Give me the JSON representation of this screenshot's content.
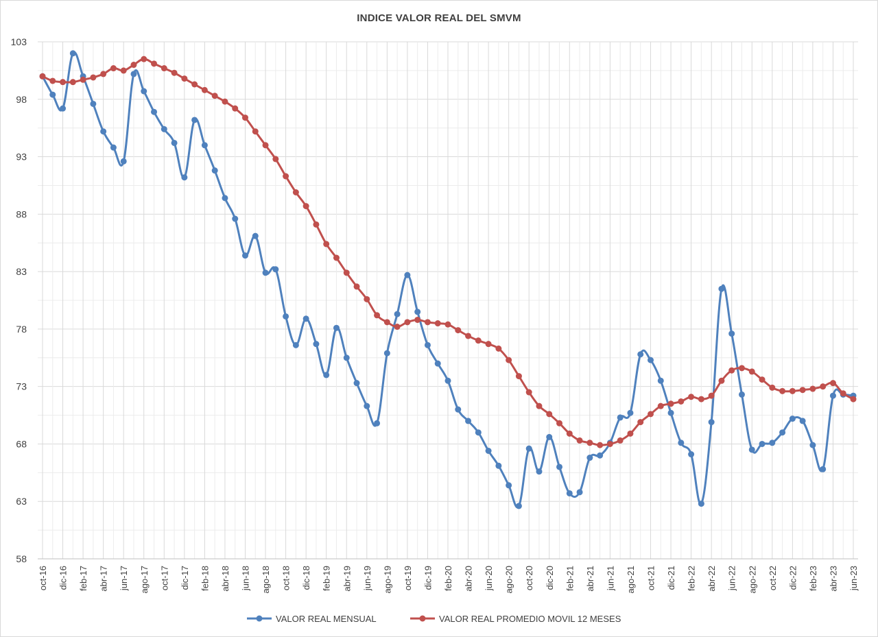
{
  "chart_data": {
    "type": "line",
    "title": "INDICE VALOR REAL DEL SMVM",
    "xlabel": "",
    "ylabel": "",
    "ylim": [
      58,
      103
    ],
    "yticks": [
      58,
      63,
      68,
      73,
      78,
      83,
      88,
      93,
      98,
      103
    ],
    "grid": true,
    "legend_position": "bottom",
    "months": [
      "oct-16",
      "nov-16",
      "dic-16",
      "ene-17",
      "feb-17",
      "mar-17",
      "abr-17",
      "may-17",
      "jun-17",
      "jul-17",
      "ago-17",
      "sep-17",
      "oct-17",
      "nov-17",
      "dic-17",
      "ene-18",
      "feb-18",
      "mar-18",
      "abr-18",
      "may-18",
      "jun-18",
      "jul-18",
      "ago-18",
      "sep-18",
      "oct-18",
      "nov-18",
      "dic-18",
      "ene-19",
      "feb-19",
      "mar-19",
      "abr-19",
      "may-19",
      "jun-19",
      "jul-19",
      "ago-19",
      "sep-19",
      "oct-19",
      "nov-19",
      "dic-19",
      "ene-20",
      "feb-20",
      "mar-20",
      "abr-20",
      "may-20",
      "jun-20",
      "jul-20",
      "ago-20",
      "sep-20",
      "oct-20",
      "nov-20",
      "dic-20",
      "ene-21",
      "feb-21",
      "mar-21",
      "abr-21",
      "may-21",
      "jun-21",
      "jul-21",
      "ago-21",
      "sep-21",
      "oct-21",
      "nov-21",
      "dic-21",
      "ene-22",
      "feb-22",
      "mar-22",
      "abr-22",
      "may-22",
      "jun-22",
      "jul-22",
      "ago-22",
      "sep-22",
      "oct-22",
      "nov-22",
      "dic-22",
      "ene-23",
      "feb-23",
      "mar-23",
      "abr-23",
      "may-23",
      "jun-23"
    ],
    "tick_labels": [
      "oct-16",
      "dic-16",
      "feb-17",
      "abr-17",
      "jun-17",
      "ago-17",
      "oct-17",
      "dic-17",
      "feb-18",
      "abr-18",
      "jun-18",
      "ago-18",
      "oct-18",
      "dic-18",
      "feb-19",
      "abr-19",
      "jun-19",
      "ago-19",
      "oct-19",
      "dic-19",
      "feb-20",
      "abr-20",
      "jun-20",
      "ago-20",
      "oct-20",
      "dic-20",
      "feb-21",
      "abr-21",
      "jun-21",
      "ago-21",
      "oct-21",
      "dic-21",
      "feb-22",
      "abr-22",
      "jun-22",
      "ago-22",
      "oct-22",
      "dic-22",
      "feb-23",
      "abr-23",
      "jun-23"
    ],
    "series": [
      {
        "name": "VALOR REAL MENSUAL",
        "color": "#4f81bd",
        "values": [
          100.0,
          98.4,
          97.2,
          102.0,
          100.0,
          97.6,
          95.2,
          93.8,
          92.6,
          100.2,
          98.7,
          96.9,
          95.4,
          94.2,
          91.2,
          96.2,
          94.0,
          91.8,
          89.4,
          87.6,
          84.4,
          86.1,
          82.9,
          83.2,
          79.1,
          76.6,
          78.9,
          76.7,
          74.0,
          78.1,
          75.5,
          73.3,
          71.3,
          69.8,
          75.9,
          79.3,
          82.7,
          79.5,
          76.6,
          75.0,
          73.5,
          71.0,
          70.0,
          69.0,
          67.4,
          66.1,
          64.4,
          62.6,
          67.6,
          65.6,
          68.6,
          66.0,
          63.7,
          63.8,
          66.8,
          67.0,
          68.1,
          70.3,
          70.7,
          75.8,
          75.3,
          73.5,
          70.7,
          68.1,
          67.1,
          62.8,
          69.9,
          81.5,
          77.6,
          72.3,
          67.5,
          68.0,
          68.1,
          69.0,
          70.2,
          70.0,
          67.9,
          65.8,
          72.2,
          72.3,
          72.2
        ]
      },
      {
        "name": "VALOR REAL PROMEDIO MOVIL 12 MESES",
        "color": "#c0504d",
        "values": [
          100.0,
          99.6,
          99.5,
          99.5,
          99.7,
          99.9,
          100.2,
          100.7,
          100.5,
          101.0,
          101.5,
          101.1,
          100.7,
          100.3,
          99.8,
          99.3,
          98.8,
          98.3,
          97.8,
          97.2,
          96.4,
          95.2,
          94.0,
          92.8,
          91.3,
          89.9,
          88.7,
          87.1,
          85.4,
          84.2,
          82.9,
          81.7,
          80.6,
          79.2,
          78.6,
          78.2,
          78.6,
          78.8,
          78.6,
          78.5,
          78.4,
          77.9,
          77.4,
          77.0,
          76.7,
          76.3,
          75.3,
          73.9,
          72.5,
          71.3,
          70.6,
          69.8,
          68.9,
          68.3,
          68.1,
          67.9,
          68.0,
          68.3,
          68.9,
          69.9,
          70.6,
          71.3,
          71.5,
          71.7,
          72.1,
          71.9,
          72.2,
          73.5,
          74.4,
          74.6,
          74.3,
          73.6,
          72.9,
          72.6,
          72.6,
          72.7,
          72.8,
          73.0,
          73.3,
          72.4,
          71.9
        ]
      }
    ]
  }
}
